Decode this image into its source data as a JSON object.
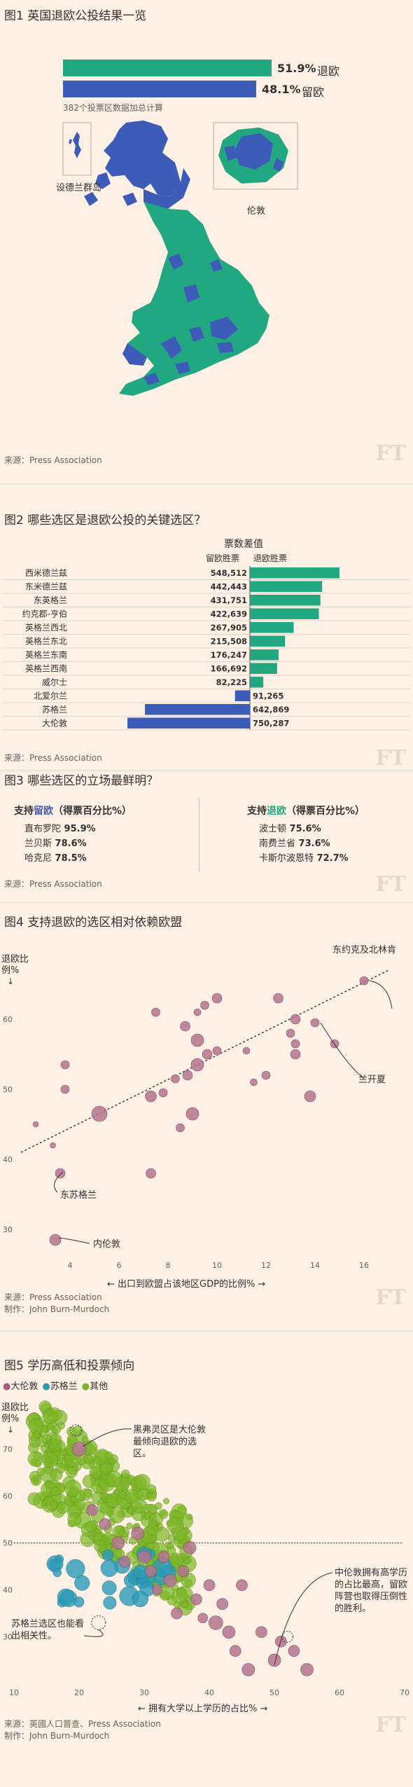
{
  "colors": {
    "leave": "#22a880",
    "remain": "#3c5cb8",
    "bg": "#fff1e5",
    "pink": "#a85c7c",
    "green": "#7cb627",
    "blue": "#2a9ab8"
  },
  "fig1": {
    "title": "图1 英国退欧公投结果一览",
    "leave_pct": "51.9%",
    "leave_label": "退欧",
    "remain_pct": "48.1%",
    "remain_label": "留欧",
    "note": "382个投票区数据加总计算",
    "label_shetland": "设德兰群岛",
    "label_london": "伦敦",
    "source": "来源：Press Association",
    "chart_data": {
      "type": "bar",
      "categories": [
        "退欧",
        "留欧"
      ],
      "values": [
        51.9,
        48.1
      ]
    }
  },
  "fig2": {
    "title": "图2 哪些选区是退欧公投的关键选区？",
    "header": "票数差值",
    "col_remain": "留欧胜票",
    "col_leave": "退欧胜票",
    "source": "来源：Press Association",
    "chart_data": {
      "type": "bar",
      "categories": [
        "西米德兰兹",
        "东米德兰兹",
        "东英格兰",
        "约克郡-亨伯",
        "英格兰西北",
        "英格兰东北",
        "英格兰东南",
        "英格兰西南",
        "威尔士",
        "北爱尔兰",
        "苏格兰",
        "大伦敦"
      ],
      "values": [
        548512,
        442443,
        431751,
        422639,
        267905,
        215508,
        176247,
        166692,
        82225,
        -91265,
        -642869,
        -750287
      ],
      "labels": [
        "548,512",
        "442,443",
        "431,751",
        "422,639",
        "267,905",
        "215,508",
        "176,247",
        "166,692",
        "82,225",
        "91,265",
        "642,869",
        "750,287"
      ]
    }
  },
  "fig3": {
    "title": "图3 哪些选区的立场最鲜明？",
    "remain_head_pre": "支持",
    "remain_head_word": "留欧",
    "remain_head_post": "（得票百分比%）",
    "leave_head_pre": "支持",
    "leave_head_word": "退欧",
    "leave_head_post": "（得票百分比%）",
    "remain_items": [
      {
        "name": "直布罗陀",
        "value": "95.9%"
      },
      {
        "name": "兰贝斯",
        "value": "78.6%"
      },
      {
        "name": "哈克尼",
        "value": "78.5%"
      }
    ],
    "leave_items": [
      {
        "name": "波士顿",
        "value": "75.6%"
      },
      {
        "name": "南费兰省",
        "value": "73.6%"
      },
      {
        "name": "卡斯尔波恩特",
        "value": "72.7%"
      }
    ],
    "source": "来源：Press Association"
  },
  "fig4": {
    "title": "图4 支持退欧的选区相对依赖欧盟",
    "ylabel": "退欧比例%",
    "xlabel": "← 出口到欧盟占该地区GDP的比例% →",
    "ann_yorkshire": "东约克及北林肯",
    "ann_lancashire": "兰开夏",
    "ann_eastscot": "东苏格兰",
    "ann_london": "内伦敦",
    "source": "来源：Press Association",
    "credit": "制作：John Burn-Murdoch",
    "chart_data": {
      "type": "scatter",
      "xlim": [
        2,
        17
      ],
      "ylim": [
        25,
        68
      ],
      "xticks": [
        4,
        6,
        8,
        10,
        12,
        14,
        16
      ],
      "yticks": [
        30,
        40,
        50,
        60
      ],
      "points": [
        {
          "x": 16.0,
          "y": 65.5,
          "r": 6
        },
        {
          "x": 9.5,
          "y": 62,
          "r": 6
        },
        {
          "x": 12.5,
          "y": 63,
          "r": 7
        },
        {
          "x": 10.0,
          "y": 63,
          "r": 7
        },
        {
          "x": 7.5,
          "y": 61,
          "r": 6
        },
        {
          "x": 8.7,
          "y": 59,
          "r": 7
        },
        {
          "x": 9.2,
          "y": 61,
          "r": 5
        },
        {
          "x": 13.0,
          "y": 58,
          "r": 6
        },
        {
          "x": 13.2,
          "y": 60,
          "r": 7
        },
        {
          "x": 14.0,
          "y": 59.5,
          "r": 6
        },
        {
          "x": 14.8,
          "y": 56.5,
          "r": 6
        },
        {
          "x": 13.2,
          "y": 56.5,
          "r": 6
        },
        {
          "x": 13.2,
          "y": 55,
          "r": 7
        },
        {
          "x": 11.2,
          "y": 55.5,
          "r": 5
        },
        {
          "x": 9.2,
          "y": 57,
          "r": 9
        },
        {
          "x": 9.6,
          "y": 55,
          "r": 7
        },
        {
          "x": 9.2,
          "y": 53.5,
          "r": 9
        },
        {
          "x": 8.8,
          "y": 52,
          "r": 7
        },
        {
          "x": 8.3,
          "y": 51.5,
          "r": 6
        },
        {
          "x": 10.0,
          "y": 55.5,
          "r": 6
        },
        {
          "x": 11.5,
          "y": 51,
          "r": 5
        },
        {
          "x": 12.0,
          "y": 52,
          "r": 6
        },
        {
          "x": 13.8,
          "y": 49,
          "r": 8
        },
        {
          "x": 7.8,
          "y": 49.5,
          "r": 6
        },
        {
          "x": 7.3,
          "y": 49,
          "r": 8
        },
        {
          "x": 9.0,
          "y": 46.5,
          "r": 9
        },
        {
          "x": 8.5,
          "y": 44.5,
          "r": 6
        },
        {
          "x": 5.2,
          "y": 46.5,
          "r": 11
        },
        {
          "x": 3.8,
          "y": 53.5,
          "r": 6
        },
        {
          "x": 3.8,
          "y": 50,
          "r": 6
        },
        {
          "x": 2.6,
          "y": 45,
          "r": 4
        },
        {
          "x": 3.3,
          "y": 42,
          "r": 4
        },
        {
          "x": 3.6,
          "y": 38,
          "r": 7
        },
        {
          "x": 7.3,
          "y": 38,
          "r": 7
        },
        {
          "x": 3.4,
          "y": 28.5,
          "r": 8
        }
      ],
      "trend": [
        [
          2,
          41
        ],
        [
          17,
          67
        ]
      ]
    }
  },
  "fig5": {
    "title": "图5 学历高低和投票倾向",
    "legend": [
      {
        "name": "大伦敦",
        "color": "#a85c7c"
      },
      {
        "name": "苏格兰",
        "color": "#2a9ab8"
      },
      {
        "name": "其他",
        "color": "#7cb627"
      }
    ],
    "ylabel": "退欧比例%",
    "xlabel": "← 拥有大学以上学历的占比% →",
    "ann1": "黑弗灵区是大伦敦最倾向退欧的选区。",
    "ann2": "中伦敦拥有高学历的占比最高，留欧阵营也取得压倒性的胜利。",
    "ann3": "苏格兰选区也能看出相关性。",
    "source": "来源：英國人口普查、Press Association",
    "credit": "制作：John Burn-Murdoch",
    "chart_data": {
      "type": "scatter",
      "xlim": [
        10,
        70
      ],
      "ylim": [
        20,
        78
      ],
      "xticks": [
        10,
        20,
        30,
        40,
        50,
        60,
        70
      ],
      "yticks": [
        30,
        40,
        50,
        60,
        70
      ],
      "reference_y": 50
    }
  }
}
